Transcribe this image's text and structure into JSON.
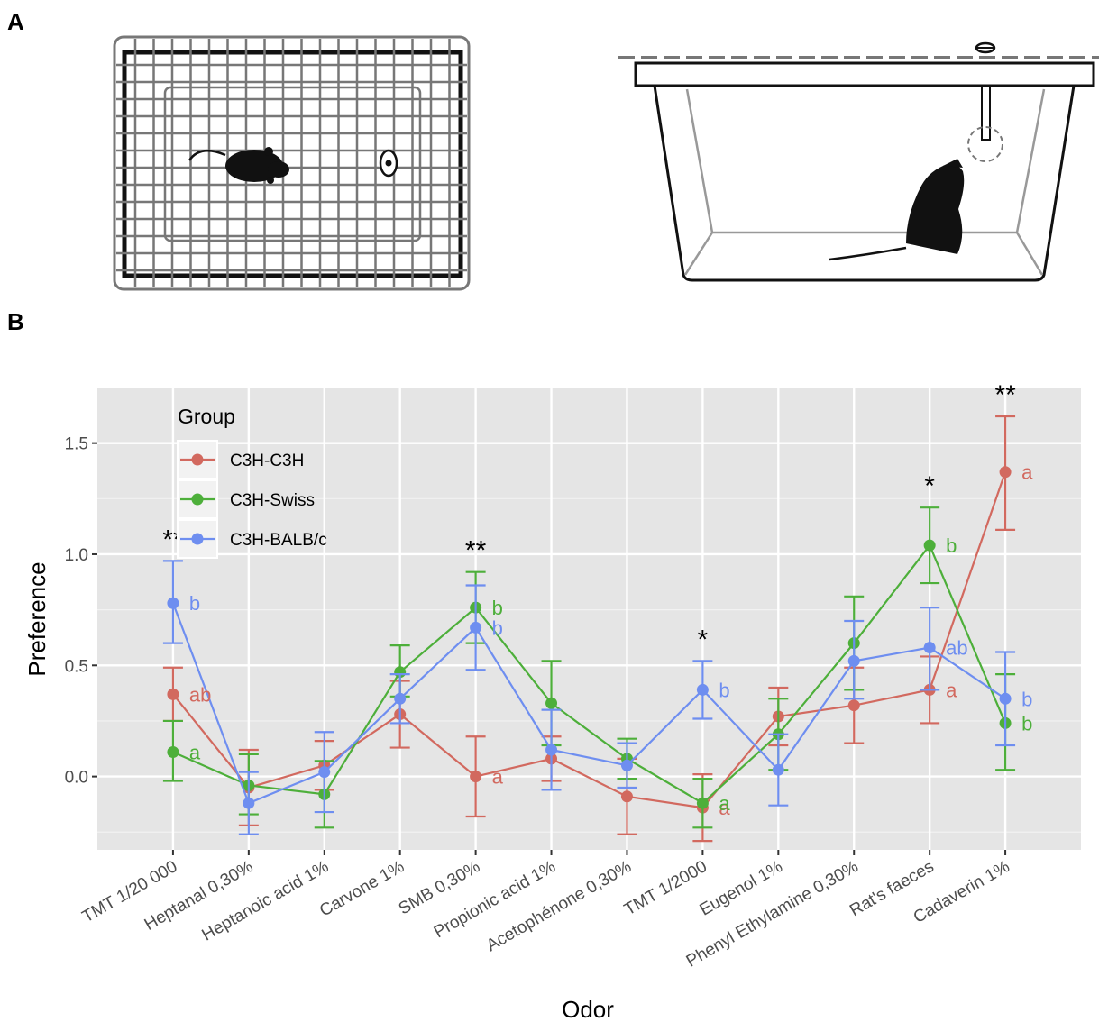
{
  "panels": {
    "a": "A",
    "b": "B"
  },
  "chart_data": {
    "type": "line",
    "xlabel": "Odor",
    "ylabel": "Preference",
    "ylim": [
      -0.33,
      1.75
    ],
    "yticks": [
      0.0,
      0.5,
      1.0,
      1.5
    ],
    "ytick_labels": [
      "0.0",
      "0.5",
      "1.0",
      "1.5"
    ],
    "categories": [
      "TMT 1/20 000",
      "Heptanal 0,30%",
      "Heptanoic acid 1%",
      "Carvone 1%",
      "SMB 0,30%",
      "Propionic acid 1%",
      "Acetophénone 0,30%",
      "TMT 1/2000",
      "Eugenol 1%",
      "Phenyl Ethylamine 0,30%",
      "Rat's faeces",
      "Cadaverin 1%"
    ],
    "grid": true,
    "legend": {
      "title": "Group",
      "position": "top-left"
    },
    "series": [
      {
        "name": "C3H-C3H",
        "color": "#D2695F",
        "values": [
          0.37,
          -0.05,
          0.05,
          0.28,
          0.0,
          0.08,
          -0.09,
          -0.14,
          0.27,
          0.32,
          0.39,
          1.37
        ],
        "err_low": [
          0.25,
          -0.22,
          -0.06,
          0.13,
          -0.18,
          -0.02,
          -0.26,
          -0.29,
          0.14,
          0.15,
          0.24,
          1.11
        ],
        "err_high": [
          0.49,
          0.12,
          0.16,
          0.43,
          0.18,
          0.18,
          0.08,
          0.01,
          0.4,
          0.49,
          0.54,
          1.62
        ],
        "letters": [
          "ab",
          "",
          "",
          "",
          "a",
          "",
          "",
          "a",
          "",
          "",
          "a",
          "a"
        ]
      },
      {
        "name": "C3H-Swiss",
        "color": "#4DAF3A",
        "values": [
          0.11,
          -0.04,
          -0.08,
          0.47,
          0.76,
          0.33,
          0.08,
          -0.12,
          0.19,
          0.6,
          1.04,
          0.24
        ],
        "err_low": [
          -0.02,
          -0.17,
          -0.23,
          0.36,
          0.6,
          0.14,
          -0.01,
          -0.23,
          0.03,
          0.39,
          0.87,
          0.03
        ],
        "err_high": [
          0.25,
          0.1,
          0.07,
          0.59,
          0.92,
          0.52,
          0.17,
          -0.01,
          0.35,
          0.81,
          1.21,
          0.46
        ],
        "letters": [
          "a",
          "",
          "",
          "",
          "b",
          "",
          "",
          "a",
          "",
          "",
          "b",
          "b"
        ]
      },
      {
        "name": "C3H-BALB/c",
        "color": "#6E8EF0",
        "values": [
          0.78,
          -0.12,
          0.02,
          0.35,
          0.67,
          0.12,
          0.05,
          0.39,
          0.03,
          0.52,
          0.58,
          0.35
        ],
        "err_low": [
          0.6,
          -0.26,
          -0.16,
          0.24,
          0.48,
          -0.06,
          -0.05,
          0.26,
          -0.13,
          0.35,
          0.39,
          0.14
        ],
        "err_high": [
          0.97,
          0.02,
          0.2,
          0.46,
          0.86,
          0.3,
          0.15,
          0.52,
          0.19,
          0.7,
          0.76,
          0.56
        ],
        "letters": [
          "b",
          "",
          "",
          "",
          "b",
          "",
          "",
          "b",
          "",
          "",
          "ab",
          "b"
        ]
      }
    ],
    "significance": [
      {
        "category": "TMT 1/20 000",
        "label": "**"
      },
      {
        "category": "SMB 0,30%",
        "label": "**"
      },
      {
        "category": "TMT 1/2000",
        "label": "*"
      },
      {
        "category": "Rat's faeces",
        "label": "*"
      },
      {
        "category": "Cadaverin 1%",
        "label": "**"
      }
    ]
  }
}
